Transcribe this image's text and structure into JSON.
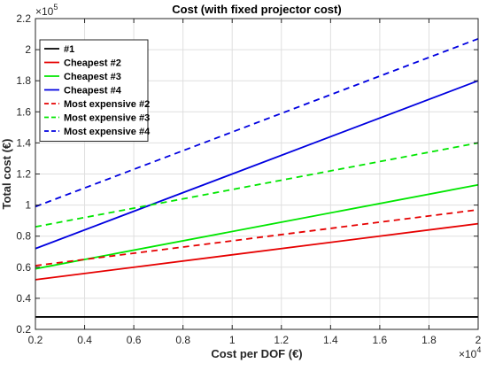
{
  "chart_data": {
    "type": "line",
    "title": "Cost (with fixed projector cost)",
    "xlabel": "Cost per DOF (€)",
    "ylabel": "Total cost (€)",
    "x_multiplier": "×10",
    "x_multiplier_exp": "4",
    "y_multiplier": "×10",
    "y_multiplier_exp": "5",
    "xlim": [
      0.2,
      2
    ],
    "ylim": [
      0.2,
      2.2
    ],
    "x_ticks": [
      0.2,
      0.4,
      0.6,
      0.8,
      1,
      1.2,
      1.4,
      1.6,
      1.8,
      2
    ],
    "y_ticks": [
      0.2,
      0.4,
      0.6,
      0.8,
      1,
      1.2,
      1.4,
      1.6,
      1.8,
      2,
      2.2
    ],
    "grid": true,
    "legend_position": "top-left",
    "series": [
      {
        "name": "#1",
        "color": "#000000",
        "dash": "solid",
        "x": [
          0.2,
          2
        ],
        "y": [
          0.28,
          0.28
        ]
      },
      {
        "name": "Cheapest #2",
        "color": "#e60000",
        "dash": "solid",
        "x": [
          0.2,
          2
        ],
        "y": [
          0.52,
          0.88
        ]
      },
      {
        "name": "Cheapest #3",
        "color": "#00e600",
        "dash": "solid",
        "x": [
          0.2,
          2
        ],
        "y": [
          0.59,
          1.13
        ]
      },
      {
        "name": "Cheapest #4",
        "color": "#0000e0",
        "dash": "solid",
        "x": [
          0.2,
          2
        ],
        "y": [
          0.72,
          1.8
        ]
      },
      {
        "name": "Most expensive #2",
        "color": "#e60000",
        "dash": "dashed",
        "x": [
          0.2,
          2
        ],
        "y": [
          0.61,
          0.97
        ]
      },
      {
        "name": "Most expensive #3",
        "color": "#00e600",
        "dash": "dashed",
        "x": [
          0.2,
          2
        ],
        "y": [
          0.86,
          1.4
        ]
      },
      {
        "name": "Most expensive #4",
        "color": "#0000e0",
        "dash": "dashed",
        "x": [
          0.2,
          2
        ],
        "y": [
          0.99,
          2.07
        ]
      }
    ]
  }
}
